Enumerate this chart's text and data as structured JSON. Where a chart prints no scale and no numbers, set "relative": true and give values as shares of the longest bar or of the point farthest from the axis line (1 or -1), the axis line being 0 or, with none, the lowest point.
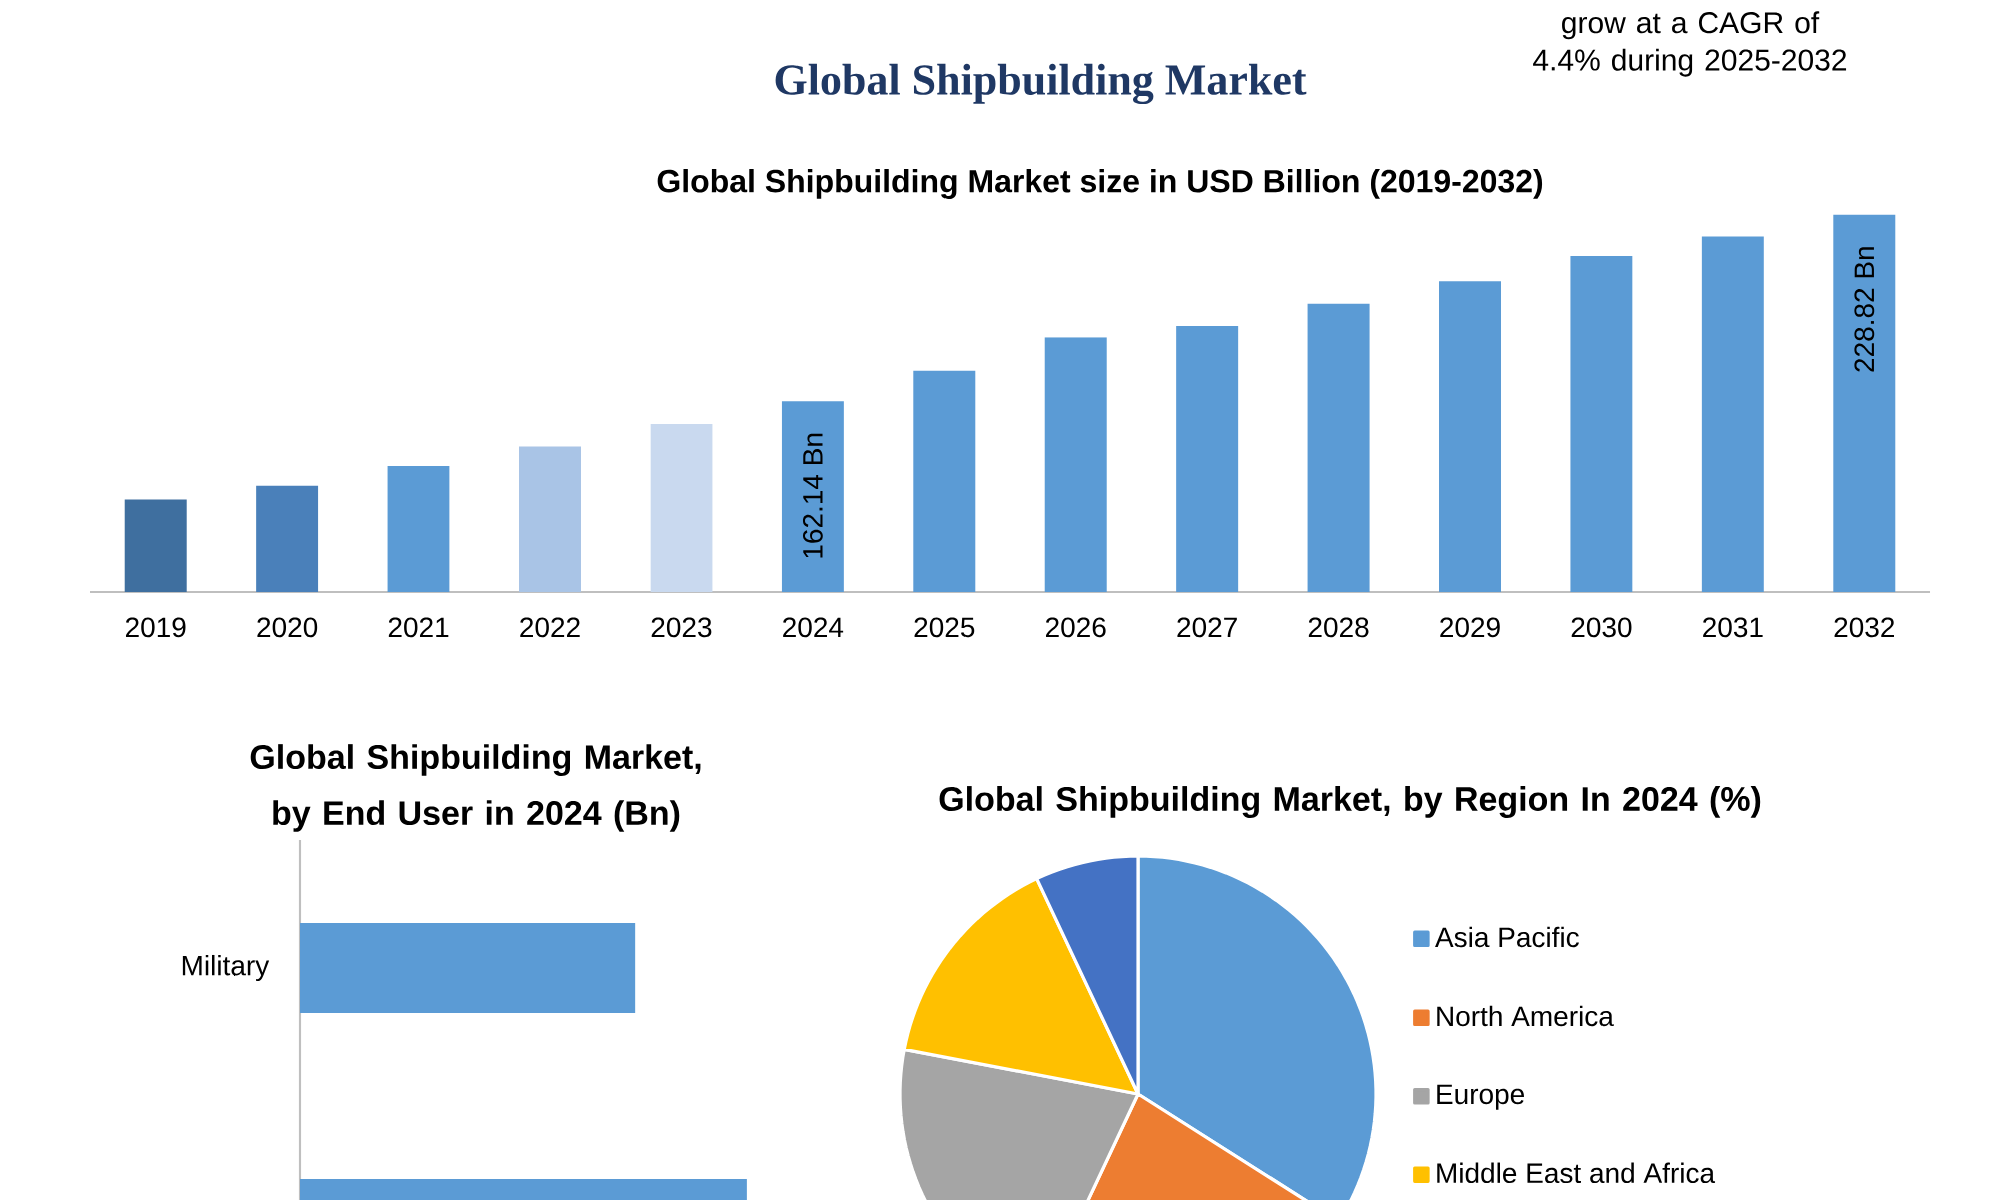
{
  "chart_data": [
    {
      "type": "bar",
      "title": "Global Shipbuilding Market",
      "subtitle": "Global Shipbuilding Market size in USD Billion (2019-2032)",
      "annotations": [
        "grow at a CAGR of 4.4% during 2025-2032"
      ],
      "categories": [
        "2019",
        "2020",
        "2021",
        "2022",
        "2023",
        "2024",
        "2025",
        "2026",
        "2027",
        "2028",
        "2029",
        "2030",
        "2031",
        "2032"
      ],
      "values": [
        127,
        132,
        139,
        146,
        154,
        162.14,
        173,
        185,
        189,
        197,
        205,
        214,
        221,
        228.82
      ],
      "colors": [
        "#3f6f9f",
        "#4a80ba",
        "#5b9bd5",
        "#a9c4e6",
        "#c9d9ef",
        "#5b9bd5",
        "#5b9bd5",
        "#5b9bd5",
        "#5b9bd5",
        "#5b9bd5",
        "#5b9bd5",
        "#5b9bd5",
        "#5b9bd5",
        "#5b9bd5"
      ],
      "value_labels": [
        null,
        null,
        null,
        null,
        null,
        "162.14 Bn",
        null,
        null,
        null,
        null,
        null,
        null,
        null,
        "228.82 Bn"
      ],
      "ylim": [
        94,
        228.82
      ],
      "tick_labels": "x"
    },
    {
      "type": "bar",
      "orientation": "horizontal",
      "title": "Global Shipbuilding Market, by End User in 2024 (Bn)",
      "categories": [
        "Military",
        null
      ],
      "values": [
        0.75,
        1
      ],
      "color": "#5b9bd5",
      "relative": true
    },
    {
      "type": "pie",
      "title": "Global Shipbuilding Market, by Region In 2024 (%)",
      "categories": [
        "Asia Pacific",
        "North America",
        "Europe",
        "Middle East and Africa",
        null
      ],
      "values": [
        34,
        23,
        21,
        15,
        7
      ],
      "colors": [
        "#5b9bd5",
        "#ed7d31",
        "#a5a5a5",
        "#ffc000",
        "#4472c4"
      ],
      "legend": "right"
    }
  ]
}
